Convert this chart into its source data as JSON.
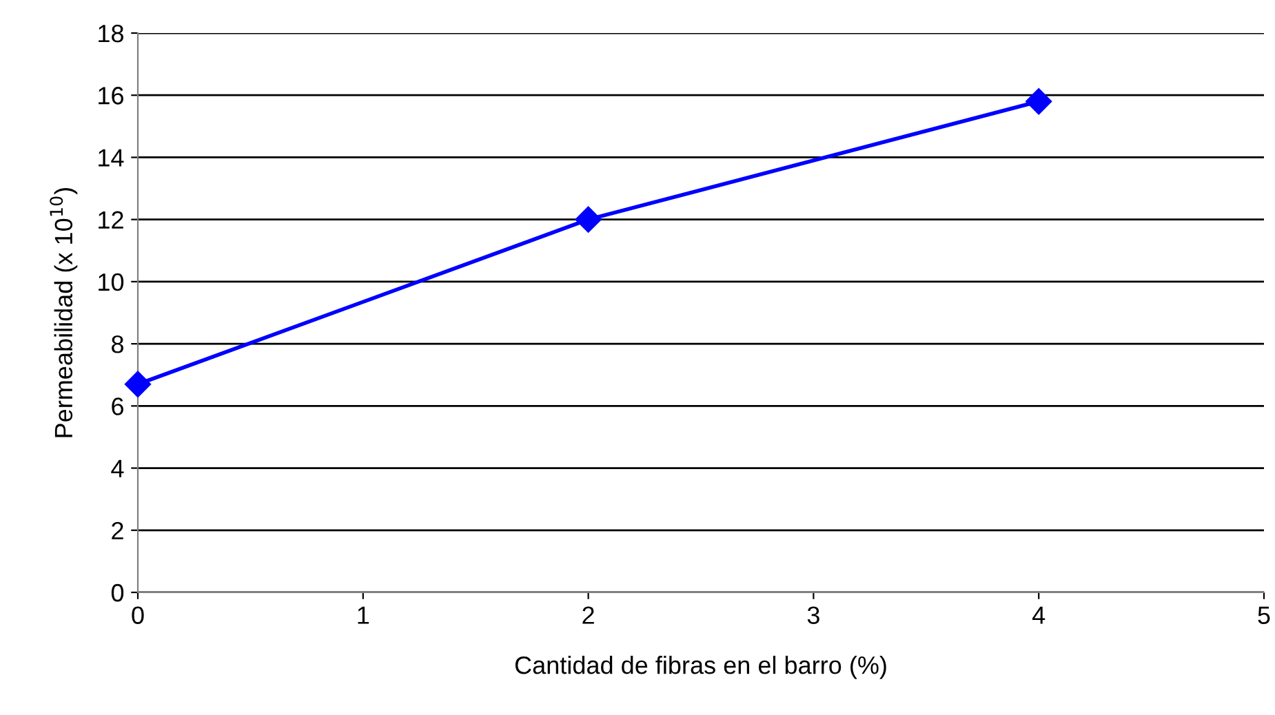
{
  "chart_data": {
    "type": "line",
    "xlabel": "Cantidad de fibras en el barro (%)",
    "ylabel": "Permeabilidad (x 10$^{10}$)",
    "x": [
      0,
      2,
      4
    ],
    "series": [
      {
        "color": "#0000ff",
        "values": [
          6.7,
          12,
          15.8
        ]
      }
    ],
    "xlim": [
      0,
      5
    ],
    "xticks": [
      0,
      1,
      2,
      3,
      4,
      5
    ],
    "ylim": [
      0,
      18
    ],
    "yticks": [
      0,
      2,
      4,
      6,
      8,
      10,
      12,
      14,
      16,
      18
    ],
    "grid": "y",
    "legend": false,
    "marker": "diamond",
    "line_style": "solid"
  }
}
